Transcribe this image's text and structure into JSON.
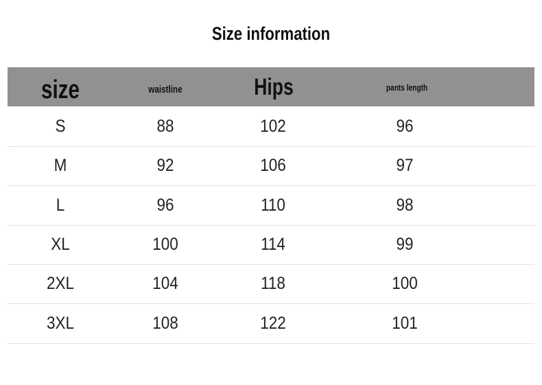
{
  "title": "Size information",
  "headers": [
    "size",
    "waistline",
    "Hips",
    "pants length"
  ],
  "rows": [
    [
      "S",
      "88",
      "102",
      "96"
    ],
    [
      "M",
      "92",
      "106",
      "97"
    ],
    [
      "L",
      "96",
      "110",
      "98"
    ],
    [
      "XL",
      "100",
      "114",
      "99"
    ],
    [
      "2XL",
      "104",
      "118",
      "100"
    ],
    [
      "3XL",
      "108",
      "122",
      "101"
    ]
  ],
  "colors": {
    "header_bg": "#919191",
    "divider": "#e3e3e3"
  }
}
